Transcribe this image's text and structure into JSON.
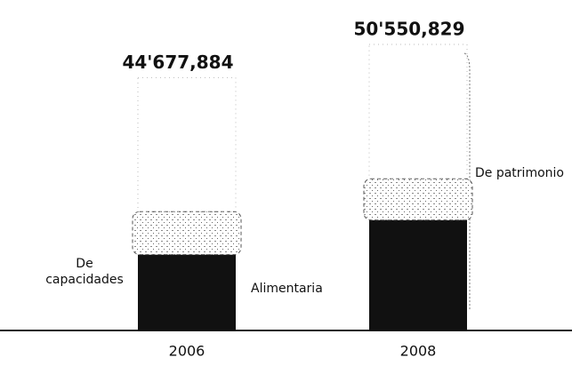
{
  "chart_data": {
    "type": "stacked-bar",
    "categories": [
      "2006",
      "2008"
    ],
    "series": [
      {
        "name": "Alimentaria",
        "color": "#111111",
        "values": [
          13400000,
          19500000
        ]
      },
      {
        "name": "De capacidades",
        "color": "#d8d8d8",
        "values": [
          7600000,
          7300000
        ]
      },
      {
        "name": "De patrimonio",
        "color": "#bbbbbb",
        "values": [
          23677884,
          23750829
        ]
      }
    ],
    "totals": {
      "values": [
        44677884,
        50550829
      ],
      "value_labels": [
        "44'677,884",
        "50'550,829"
      ]
    }
  }
}
